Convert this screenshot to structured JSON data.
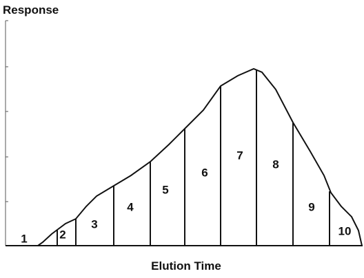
{
  "y_axis_label": "Response",
  "x_axis_label": "Elution Time",
  "fractions": [
    "1",
    "2",
    "3",
    "4",
    "5",
    "6",
    "7",
    "8",
    "9",
    "10"
  ]
}
